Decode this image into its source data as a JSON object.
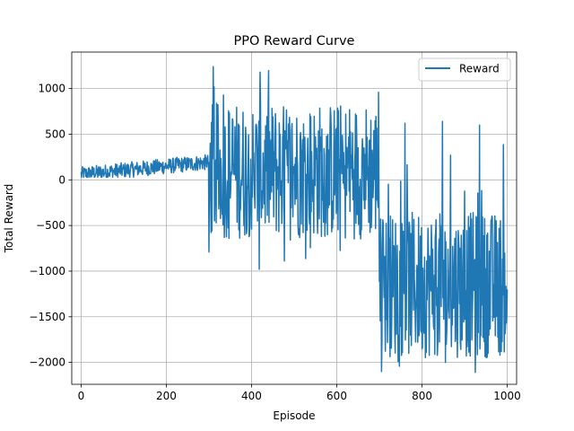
{
  "chart_data": {
    "type": "line",
    "title": "PPO Reward Curve",
    "xlabel": "Episode",
    "ylabel": "Total Reward",
    "xlim": [
      -22,
      1022
    ],
    "ylim": [
      -2240,
      1400
    ],
    "xticks": [
      0,
      200,
      400,
      600,
      800,
      1000
    ],
    "yticks": [
      -2000,
      -1500,
      -1000,
      -500,
      0,
      500,
      1000
    ],
    "grid": true,
    "legend_position": "top-right",
    "colors": {
      "series": "#1f77b4",
      "grid": "#b0b0b0",
      "axis": "#000000"
    },
    "segments": [
      {
        "x_start": 0,
        "x_end": 300,
        "min": 30,
        "max": 340
      },
      {
        "x_start": 300,
        "x_end": 700,
        "min": -980,
        "max": 1250
      },
      {
        "x_start": 700,
        "x_end": 1000,
        "min": -2110,
        "max": 640
      }
    ],
    "series": [
      {
        "name": "Reward",
        "color": "#1f77b4",
        "x": [],
        "y": []
      }
    ]
  }
}
